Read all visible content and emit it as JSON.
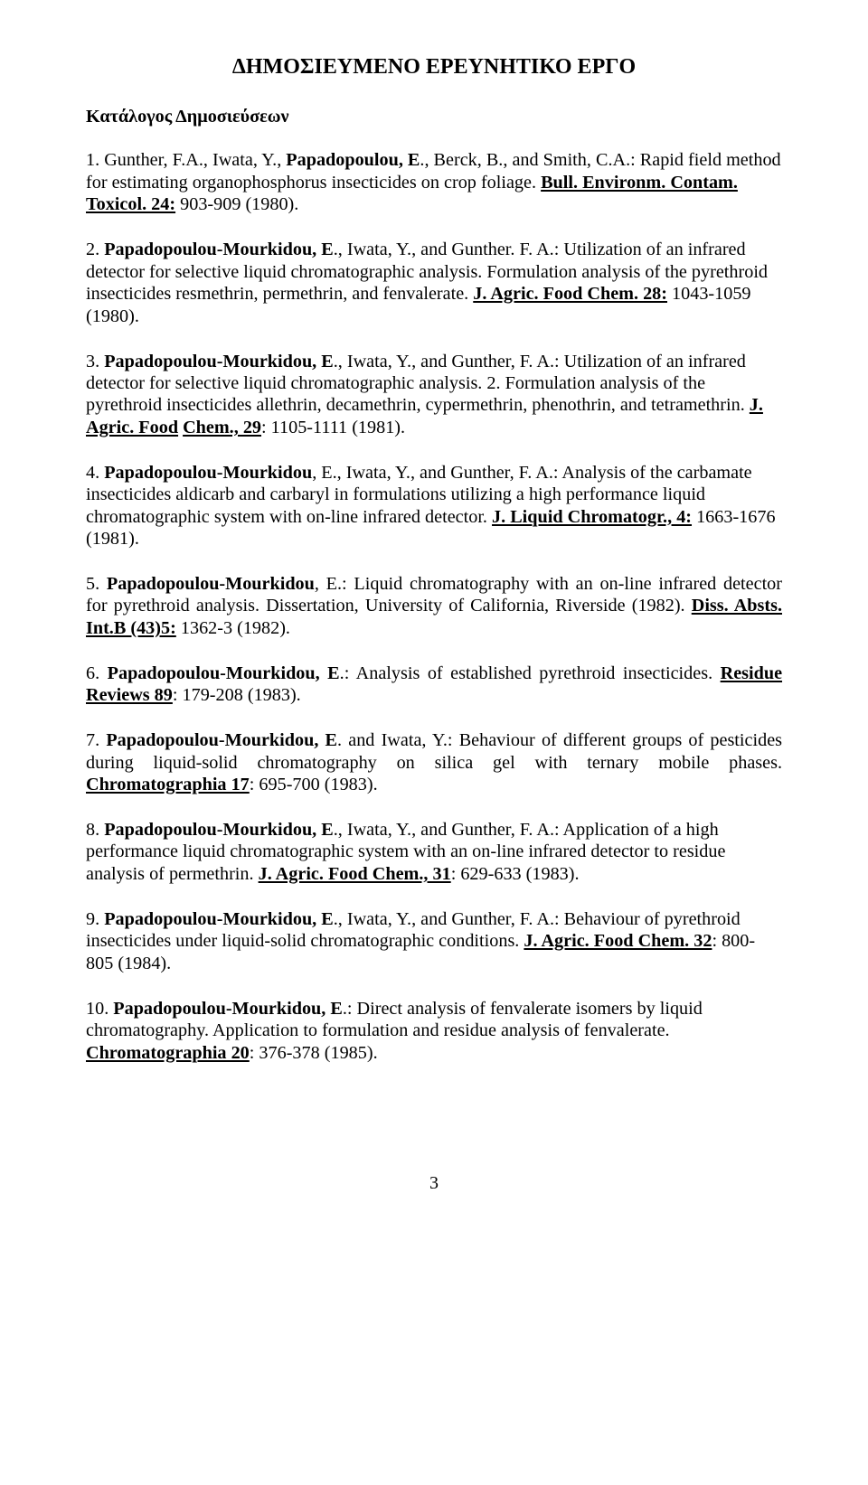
{
  "title": "ΔΗΜΟΣΙΕΥΜΕΝΟ ΕΡΕΥΝΗΤΙΚΟ ΕΡΓΟ",
  "subtitle": "Κατάλογος Δημοσιεύσεων",
  "e1": {
    "t1": "1. Gunther, F.A., Iwata, Y., ",
    "t2": "Papadopoulou, E",
    "t3": "., Berck, B., and Smith, C.A.: Rapid field method for estimating organophosphorus   insecticides on crop foliage. ",
    "j": "Bull. Environm. Contam. Toxicol. 24:",
    "t4": "   903-909 (1980)."
  },
  "e2": {
    "t1": "2. ",
    "t2": "Papadopoulou-Mourkidou, E",
    "t3": "., Iwata, Y., and Gunther. F. A.: Utilization of an infrared detector for selective liquid chromatographic  analysis. Formulation analysis of the pyrethroid insecticides resmethrin, permethrin, and fenvalerate. ",
    "j": "J. Agric. Food Chem. 28:",
    "t4": " 1043-1059 (1980)."
  },
  "e3": {
    "t1": "3. ",
    "t2": "Papadopoulou-Mourkidou, E",
    "t3": "., Iwata, Y., and Gunther, F. A.: Utilization        of an infrared detector for selective liquid chromatographic analysis.   2. Formulation analysis of the pyrethroid insecticides allethrin,         decamethrin, cypermethrin, phenothrin, and tetramethrin. ",
    "j1": "J. Agric. Food",
    "gap": "         ",
    "j2": "Chem., 29",
    "t4": ": 1105-1111 (1981)."
  },
  "e4": {
    "t1": "4. ",
    "t2": "Papadopoulou-Mourkidou",
    "t3": ", E., Iwata, Y., and Gunther, F. A.: Analysis of  the carbamate insecticides aldicarb and carbaryl in formulations utilizing a high performance liquid chromatographic system with on-line infrared    detector. ",
    "j": "J. Liquid Chromatogr., 4:",
    "t4": " 1663-1676 (1981)."
  },
  "e5": {
    "t1": "5. ",
    "t2": "Papadopoulou-Mourkidou",
    "t3": ", E.: Liquid chromatography with an on-line infrared detector for pyrethroid analysis. Dissertation, University of California, Riverside (1982). ",
    "j": "Diss. Absts. Int.B (43)5:",
    "t4": " 1362-3 (1982)."
  },
  "e6": {
    "t1": "6. ",
    "t2": "Papadopoulou-Mourkidou, E",
    "t3": ".: Analysis of established pyrethroid insecticides. ",
    "j": "Residue Reviews 89",
    "t4": ": 179-208 (1983)."
  },
  "e7": {
    "t1": "7. ",
    "t2": "Papadopoulou-Mourkidou, E",
    "t3": ". and Iwata, Y.: Behaviour of different groups of pesticides during liquid-solid chromatography on silica gel with ternary mobile phases. ",
    "j": "Chromatographia 17",
    "t4": ": 695-700 (1983)."
  },
  "e8": {
    "t1": "8. ",
    "t2": "Papadopoulou-Mourkidou, E",
    "t3": "., Iwata, Y., and Gunther, F. A.: Application of   a high performance liquid chromatographic system with an on-line    infrared    detector to residue analysis of permethrin. ",
    "j": "J. Agric. Food Chem., 31",
    "t4": ": 629-633 (1983)."
  },
  "e9": {
    "t1": "9. ",
    "t2": "Papadopoulou-Mourkidou, E",
    "t3": "., Iwata, Y., and Gunther, F. A.: Behaviour        of pyrethroid insecticides under liquid-solid chromatographic   conditions.   ",
    "j": "J. Agric. Food Chem. 32",
    "t4": ": 800-805 (1984)."
  },
  "e10": {
    "t1": "10. ",
    "t2": "Papadopoulou-Mourkidou, E",
    "t3": ".: Direct analysis of fenvalerate isomers by liquid chromatography. Application to formulation and residue analysis of fenvalerate. ",
    "j": "Chromatographia 20",
    "t4": ": 376-378 (1985)."
  },
  "pagenum": "3"
}
